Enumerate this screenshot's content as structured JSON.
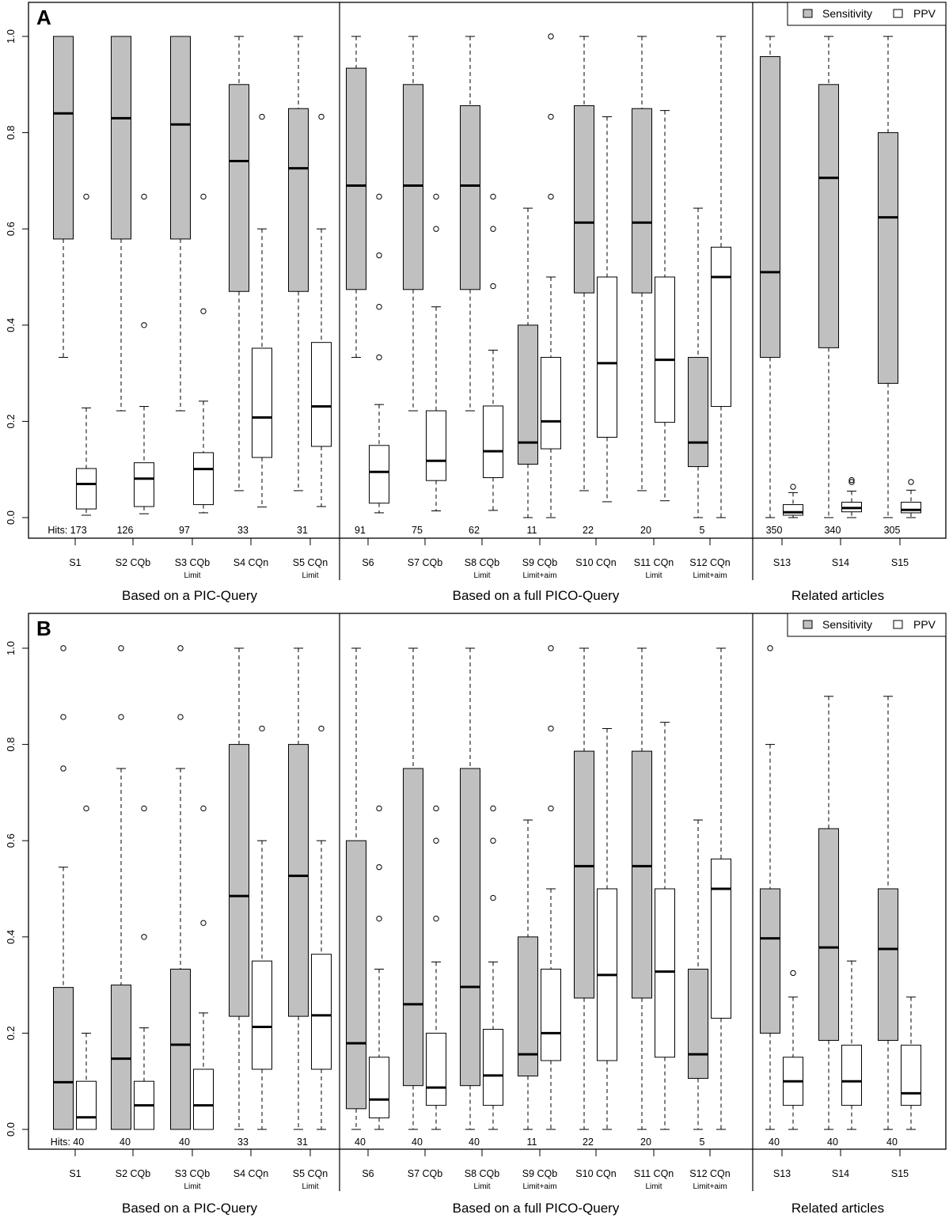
{
  "chart_data": [
    {
      "type": "boxplot",
      "panel": "A",
      "ylim": [
        0,
        1
      ],
      "yticks": [
        "0.0",
        "0.2",
        "0.4",
        "0.6",
        "0.8",
        "1.0"
      ],
      "legend": {
        "position": "top-right",
        "items": [
          {
            "name": "Sensitivity",
            "color": "#c0c0c0"
          },
          {
            "name": "PPV",
            "color": "#ffffff"
          }
        ]
      },
      "groups": [
        {
          "label": "Based on a PIC-Query",
          "categories": [
            0,
            1,
            2,
            3,
            4
          ]
        },
        {
          "label": "Based on a full PICO-Query",
          "categories": [
            5,
            6,
            7,
            8,
            9,
            10,
            11
          ]
        },
        {
          "label": "Related articles",
          "categories": [
            12,
            13,
            14
          ]
        }
      ],
      "categories": [
        {
          "label": "S1",
          "sub": "",
          "hits": "Hits: 173"
        },
        {
          "label": "S2 CQb",
          "sub": "",
          "hits": "126"
        },
        {
          "label": "S3 CQb",
          "sub": "Limit",
          "hits": "97"
        },
        {
          "label": "S4 CQn",
          "sub": "",
          "hits": "33"
        },
        {
          "label": "S5 CQn",
          "sub": "Limit",
          "hits": "31"
        },
        {
          "label": "S6",
          "sub": "",
          "hits": "91"
        },
        {
          "label": "S7 CQb",
          "sub": "",
          "hits": "75"
        },
        {
          "label": "S8 CQb",
          "sub": "Limit",
          "hits": "62"
        },
        {
          "label": "S9 CQb",
          "sub": "Limit+aim",
          "hits": "11"
        },
        {
          "label": "S10 CQn",
          "sub": "",
          "hits": "22"
        },
        {
          "label": "S11 CQn",
          "sub": "Limit",
          "hits": "20"
        },
        {
          "label": "S12 CQn",
          "sub": "Limit+aim",
          "hits": "5"
        },
        {
          "label": "S13",
          "sub": "",
          "hits": "350"
        },
        {
          "label": "S14",
          "sub": "",
          "hits": "340"
        },
        {
          "label": "S15",
          "sub": "",
          "hits": "305"
        }
      ],
      "series": [
        {
          "name": "Sensitivity",
          "boxes": [
            {
              "min": 0.333,
              "q1": 0.579,
              "median": 0.84,
              "q3": 1.0,
              "max": 1.0,
              "outliers": []
            },
            {
              "min": 0.222,
              "q1": 0.579,
              "median": 0.83,
              "q3": 1.0,
              "max": 1.0,
              "outliers": []
            },
            {
              "min": 0.222,
              "q1": 0.579,
              "median": 0.817,
              "q3": 1.0,
              "max": 1.0,
              "outliers": []
            },
            {
              "min": 0.056,
              "q1": 0.47,
              "median": 0.741,
              "q3": 0.9,
              "max": 1.0,
              "outliers": []
            },
            {
              "min": 0.056,
              "q1": 0.47,
              "median": 0.726,
              "q3": 0.85,
              "max": 1.0,
              "outliers": []
            },
            {
              "min": 0.333,
              "q1": 0.474,
              "median": 0.69,
              "q3": 0.934,
              "max": 1.0,
              "outliers": []
            },
            {
              "min": 0.222,
              "q1": 0.474,
              "median": 0.69,
              "q3": 0.9,
              "max": 1.0,
              "outliers": []
            },
            {
              "min": 0.222,
              "q1": 0.474,
              "median": 0.69,
              "q3": 0.856,
              "max": 1.0,
              "outliers": []
            },
            {
              "min": 0.0,
              "q1": 0.111,
              "median": 0.156,
              "q3": 0.4,
              "max": 0.643,
              "outliers": []
            },
            {
              "min": 0.056,
              "q1": 0.467,
              "median": 0.613,
              "q3": 0.856,
              "max": 1.0,
              "outliers": []
            },
            {
              "min": 0.056,
              "q1": 0.467,
              "median": 0.613,
              "q3": 0.85,
              "max": 1.0,
              "outliers": []
            },
            {
              "min": 0.0,
              "q1": 0.106,
              "median": 0.156,
              "q3": 0.333,
              "max": 0.643,
              "outliers": []
            },
            {
              "min": 0.0,
              "q1": 0.333,
              "median": 0.51,
              "q3": 0.958,
              "max": 1.0,
              "outliers": []
            },
            {
              "min": 0.0,
              "q1": 0.353,
              "median": 0.706,
              "q3": 0.9,
              "max": 1.0,
              "outliers": []
            },
            {
              "min": 0.0,
              "q1": 0.279,
              "median": 0.624,
              "q3": 0.8,
              "max": 1.0,
              "outliers": []
            }
          ]
        },
        {
          "name": "PPV",
          "boxes": [
            {
              "min": 0.005,
              "q1": 0.018,
              "median": 0.07,
              "q3": 0.102,
              "max": 0.228,
              "outliers": [
                0.667
              ]
            },
            {
              "min": 0.008,
              "q1": 0.023,
              "median": 0.081,
              "q3": 0.114,
              "max": 0.231,
              "outliers": [
                0.4,
                0.667
              ]
            },
            {
              "min": 0.01,
              "q1": 0.027,
              "median": 0.101,
              "q3": 0.135,
              "max": 0.242,
              "outliers": [
                0.429,
                0.667
              ]
            },
            {
              "min": 0.022,
              "q1": 0.125,
              "median": 0.208,
              "q3": 0.352,
              "max": 0.6,
              "outliers": [
                0.833
              ]
            },
            {
              "min": 0.023,
              "q1": 0.148,
              "median": 0.231,
              "q3": 0.364,
              "max": 0.6,
              "outliers": [
                0.833
              ]
            },
            {
              "min": 0.01,
              "q1": 0.03,
              "median": 0.095,
              "q3": 0.15,
              "max": 0.235,
              "outliers": [
                0.333,
                0.438,
                0.545,
                0.667
              ]
            },
            {
              "min": 0.014,
              "q1": 0.077,
              "median": 0.118,
              "q3": 0.222,
              "max": 0.438,
              "outliers": [
                0.6,
                0.667
              ]
            },
            {
              "min": 0.015,
              "q1": 0.083,
              "median": 0.138,
              "q3": 0.232,
              "max": 0.348,
              "outliers": [
                0.481,
                0.6,
                0.667
              ]
            },
            {
              "min": 0.0,
              "q1": 0.143,
              "median": 0.2,
              "q3": 0.333,
              "max": 0.5,
              "outliers": [
                0.667,
                0.833,
                1.0
              ]
            },
            {
              "min": 0.033,
              "q1": 0.167,
              "median": 0.321,
              "q3": 0.5,
              "max": 0.833,
              "outliers": []
            },
            {
              "min": 0.035,
              "q1": 0.198,
              "median": 0.328,
              "q3": 0.5,
              "max": 0.846,
              "outliers": []
            },
            {
              "min": 0.0,
              "q1": 0.231,
              "median": 0.5,
              "q3": 0.562,
              "max": 1.0,
              "outliers": []
            },
            {
              "min": 0.0,
              "q1": 0.005,
              "median": 0.011,
              "q3": 0.027,
              "max": 0.052,
              "outliers": [
                0.064
              ]
            },
            {
              "min": 0.0,
              "q1": 0.012,
              "median": 0.02,
              "q3": 0.032,
              "max": 0.055,
              "outliers": [
                0.074,
                0.078
              ]
            },
            {
              "min": 0.0,
              "q1": 0.01,
              "median": 0.016,
              "q3": 0.032,
              "max": 0.057,
              "outliers": [
                0.074
              ]
            }
          ]
        }
      ]
    },
    {
      "type": "boxplot",
      "panel": "B",
      "ylim": [
        0,
        1
      ],
      "yticks": [
        "0.0",
        "0.2",
        "0.4",
        "0.6",
        "0.8",
        "1.0"
      ],
      "legend": {
        "position": "top-right",
        "items": [
          {
            "name": "Sensitivity",
            "color": "#c0c0c0"
          },
          {
            "name": "PPV",
            "color": "#ffffff"
          }
        ]
      },
      "groups": [
        {
          "label": "Based on a PIC-Query",
          "categories": [
            0,
            1,
            2,
            3,
            4
          ]
        },
        {
          "label": "Based on a full PICO-Query",
          "categories": [
            5,
            6,
            7,
            8,
            9,
            10,
            11
          ]
        },
        {
          "label": "Related articles",
          "categories": [
            12,
            13,
            14
          ]
        }
      ],
      "categories": [
        {
          "label": "S1",
          "sub": "",
          "hits": "Hits: 40"
        },
        {
          "label": "S2 CQb",
          "sub": "",
          "hits": "40"
        },
        {
          "label": "S3 CQb",
          "sub": "Limit",
          "hits": "40"
        },
        {
          "label": "S4 CQn",
          "sub": "",
          "hits": "33"
        },
        {
          "label": "S5 CQn",
          "sub": "Limit",
          "hits": "31"
        },
        {
          "label": "S6",
          "sub": "",
          "hits": "40"
        },
        {
          "label": "S7 CQb",
          "sub": "",
          "hits": "40"
        },
        {
          "label": "S8 CQb",
          "sub": "Limit",
          "hits": "40"
        },
        {
          "label": "S9 CQb",
          "sub": "Limit+aim",
          "hits": "11"
        },
        {
          "label": "S10 CQn",
          "sub": "",
          "hits": "22"
        },
        {
          "label": "S11 CQn",
          "sub": "Limit",
          "hits": "20"
        },
        {
          "label": "S12 CQn",
          "sub": "Limit+aim",
          "hits": "5"
        },
        {
          "label": "S13",
          "sub": "",
          "hits": "40"
        },
        {
          "label": "S14",
          "sub": "",
          "hits": "40"
        },
        {
          "label": "S15",
          "sub": "",
          "hits": "40"
        }
      ],
      "series": [
        {
          "name": "Sensitivity",
          "boxes": [
            {
              "min": 0.0,
              "q1": 0.0,
              "median": 0.098,
              "q3": 0.295,
              "max": 0.545,
              "outliers": [
                0.75,
                0.857,
                1.0
              ]
            },
            {
              "min": 0.0,
              "q1": 0.0,
              "median": 0.147,
              "q3": 0.3,
              "max": 0.75,
              "outliers": [
                0.857,
                1.0
              ]
            },
            {
              "min": 0.0,
              "q1": 0.0,
              "median": 0.176,
              "q3": 0.333,
              "max": 0.75,
              "outliers": [
                0.857,
                1.0
              ]
            },
            {
              "min": 0.0,
              "q1": 0.235,
              "median": 0.485,
              "q3": 0.8,
              "max": 1.0,
              "outliers": []
            },
            {
              "min": 0.0,
              "q1": 0.235,
              "median": 0.527,
              "q3": 0.8,
              "max": 1.0,
              "outliers": []
            },
            {
              "min": 0.0,
              "q1": 0.043,
              "median": 0.179,
              "q3": 0.6,
              "max": 1.0,
              "outliers": []
            },
            {
              "min": 0.0,
              "q1": 0.091,
              "median": 0.26,
              "q3": 0.75,
              "max": 1.0,
              "outliers": []
            },
            {
              "min": 0.0,
              "q1": 0.091,
              "median": 0.296,
              "q3": 0.75,
              "max": 1.0,
              "outliers": []
            },
            {
              "min": 0.0,
              "q1": 0.111,
              "median": 0.156,
              "q3": 0.4,
              "max": 0.643,
              "outliers": []
            },
            {
              "min": 0.0,
              "q1": 0.273,
              "median": 0.547,
              "q3": 0.786,
              "max": 1.0,
              "outliers": []
            },
            {
              "min": 0.0,
              "q1": 0.273,
              "median": 0.547,
              "q3": 0.786,
              "max": 1.0,
              "outliers": []
            },
            {
              "min": 0.0,
              "q1": 0.106,
              "median": 0.156,
              "q3": 0.333,
              "max": 0.643,
              "outliers": []
            },
            {
              "min": 0.0,
              "q1": 0.2,
              "median": 0.397,
              "q3": 0.5,
              "max": 0.8,
              "outliers": [
                1.0
              ]
            },
            {
              "min": 0.0,
              "q1": 0.185,
              "median": 0.378,
              "q3": 0.625,
              "max": 0.9,
              "outliers": []
            },
            {
              "min": 0.0,
              "q1": 0.185,
              "median": 0.375,
              "q3": 0.5,
              "max": 0.9,
              "outliers": []
            }
          ]
        },
        {
          "name": "PPV",
          "boxes": [
            {
              "min": 0.0,
              "q1": 0.0,
              "median": 0.025,
              "q3": 0.1,
              "max": 0.2,
              "outliers": [
                0.667
              ]
            },
            {
              "min": 0.0,
              "q1": 0.0,
              "median": 0.05,
              "q3": 0.1,
              "max": 0.211,
              "outliers": [
                0.4,
                0.667
              ]
            },
            {
              "min": 0.0,
              "q1": 0.0,
              "median": 0.05,
              "q3": 0.125,
              "max": 0.242,
              "outliers": [
                0.429,
                0.667
              ]
            },
            {
              "min": 0.0,
              "q1": 0.125,
              "median": 0.213,
              "q3": 0.35,
              "max": 0.6,
              "outliers": [
                0.833
              ]
            },
            {
              "min": 0.0,
              "q1": 0.125,
              "median": 0.237,
              "q3": 0.364,
              "max": 0.6,
              "outliers": [
                0.833
              ]
            },
            {
              "min": 0.0,
              "q1": 0.024,
              "median": 0.062,
              "q3": 0.15,
              "max": 0.333,
              "outliers": [
                0.438,
                0.545,
                0.667
              ]
            },
            {
              "min": 0.0,
              "q1": 0.05,
              "median": 0.087,
              "q3": 0.2,
              "max": 0.348,
              "outliers": [
                0.438,
                0.6,
                0.667
              ]
            },
            {
              "min": 0.0,
              "q1": 0.05,
              "median": 0.112,
              "q3": 0.208,
              "max": 0.348,
              "outliers": [
                0.481,
                0.6,
                0.667
              ]
            },
            {
              "min": 0.0,
              "q1": 0.143,
              "median": 0.2,
              "q3": 0.333,
              "max": 0.5,
              "outliers": [
                0.667,
                0.833,
                1.0
              ]
            },
            {
              "min": 0.0,
              "q1": 0.143,
              "median": 0.321,
              "q3": 0.5,
              "max": 0.833,
              "outliers": []
            },
            {
              "min": 0.0,
              "q1": 0.15,
              "median": 0.328,
              "q3": 0.5,
              "max": 0.846,
              "outliers": []
            },
            {
              "min": 0.0,
              "q1": 0.231,
              "median": 0.5,
              "q3": 0.562,
              "max": 1.0,
              "outliers": []
            },
            {
              "min": 0.0,
              "q1": 0.05,
              "median": 0.1,
              "q3": 0.15,
              "max": 0.275,
              "outliers": [
                0.325
              ]
            },
            {
              "min": 0.0,
              "q1": 0.05,
              "median": 0.1,
              "q3": 0.175,
              "max": 0.35,
              "outliers": []
            },
            {
              "min": 0.0,
              "q1": 0.05,
              "median": 0.075,
              "q3": 0.175,
              "max": 0.275,
              "outliers": []
            }
          ]
        }
      ]
    }
  ]
}
